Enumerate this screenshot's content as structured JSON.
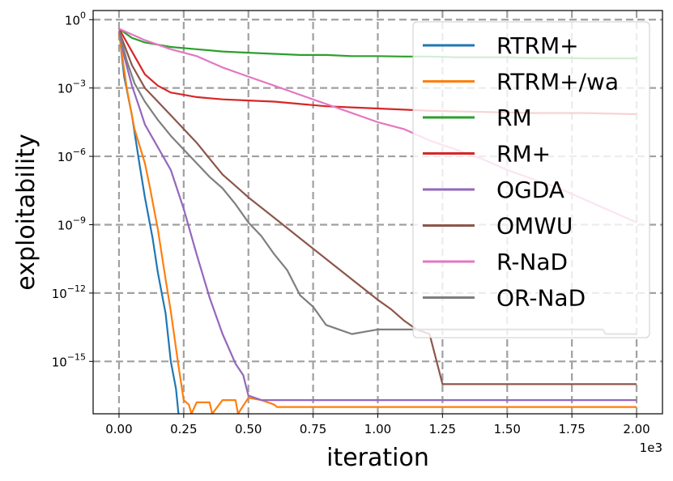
{
  "chart_data": {
    "type": "line",
    "title": "",
    "xlabel": "iteration",
    "ylabel": "exploitability",
    "x_offset_label": "1e3",
    "x_scale_factor": 1000,
    "xlim": [
      -0.1,
      2.1
    ],
    "ylim_log10": [
      -17.3,
      0.4
    ],
    "x_ticks": [
      0.0,
      0.25,
      0.5,
      0.75,
      1.0,
      1.25,
      1.5,
      1.75,
      2.0
    ],
    "x_tick_labels": [
      "0.00",
      "0.25",
      "0.50",
      "0.75",
      "1.00",
      "1.25",
      "1.50",
      "1.75",
      "2.00"
    ],
    "y_ticks_log10": [
      0,
      -3,
      -6,
      -9,
      -12,
      -15
    ],
    "y_tick_labels": [
      {
        "base": "10",
        "exp": "0"
      },
      {
        "base": "10",
        "exp": "−3"
      },
      {
        "base": "10",
        "exp": "−6"
      },
      {
        "base": "10",
        "exp": "−9"
      },
      {
        "base": "10",
        "exp": "−12"
      },
      {
        "base": "10",
        "exp": "−15"
      }
    ],
    "grid": true,
    "legend_position": "top-right",
    "series": [
      {
        "name": "RTRM+",
        "color": "#1f77b4",
        "x": [
          0,
          0.02,
          0.05,
          0.08,
          0.1,
          0.13,
          0.15,
          0.18,
          0.2,
          0.22,
          0.23
        ],
        "y_log10": [
          -0.5,
          -2.5,
          -4.2,
          -6.4,
          -7.8,
          -9.6,
          -11.1,
          -12.9,
          -15.0,
          -16.2,
          -17.3
        ]
      },
      {
        "name": "RTRM+/wa",
        "color": "#ff7f0e",
        "x": [
          0,
          0.03,
          0.06,
          0.1,
          0.12,
          0.15,
          0.18,
          0.2,
          0.23,
          0.25,
          0.27,
          0.28,
          0.3,
          0.35,
          0.36,
          0.4,
          0.45,
          0.46,
          0.5,
          0.55,
          0.6,
          0.61,
          2.0
        ],
        "y_log10": [
          -0.6,
          -3.0,
          -4.8,
          -6.3,
          -7.4,
          -9.2,
          -11.4,
          -12.8,
          -15.2,
          -16.7,
          -16.9,
          -17.3,
          -16.8,
          -16.8,
          -17.3,
          -16.7,
          -16.7,
          -17.3,
          -16.6,
          -16.7,
          -16.9,
          -17.0,
          -17.0
        ]
      },
      {
        "name": "RM",
        "color": "#2ca02c",
        "x": [
          0,
          0.05,
          0.1,
          0.15,
          0.2,
          0.3,
          0.4,
          0.5,
          0.6,
          0.7,
          0.8,
          0.9,
          1.0,
          1.1,
          1.2,
          1.3,
          1.4,
          1.5,
          1.6,
          1.7,
          1.8,
          1.9,
          2.0
        ],
        "y_log10": [
          -0.4,
          -0.8,
          -1.0,
          -1.1,
          -1.2,
          -1.3,
          -1.4,
          -1.45,
          -1.5,
          -1.55,
          -1.55,
          -1.6,
          -1.6,
          -1.62,
          -1.62,
          -1.65,
          -1.65,
          -1.65,
          -1.68,
          -1.68,
          -1.7,
          -1.7,
          -1.7
        ]
      },
      {
        "name": "RM+",
        "color": "#d62728",
        "x": [
          0,
          0.05,
          0.1,
          0.15,
          0.2,
          0.25,
          0.3,
          0.35,
          0.4,
          0.5,
          0.6,
          0.7,
          0.8,
          0.9,
          1.0,
          1.1,
          1.2,
          1.4,
          1.6,
          1.8,
          2.0
        ],
        "y_log10": [
          -0.4,
          -1.4,
          -2.4,
          -2.9,
          -3.2,
          -3.3,
          -3.4,
          -3.45,
          -3.5,
          -3.55,
          -3.6,
          -3.7,
          -3.8,
          -3.85,
          -3.9,
          -3.95,
          -4.0,
          -4.05,
          -4.1,
          -4.1,
          -4.15
        ]
      },
      {
        "name": "OGDA",
        "color": "#9467bd",
        "x": [
          0,
          0.02,
          0.05,
          0.08,
          0.1,
          0.15,
          0.2,
          0.25,
          0.3,
          0.35,
          0.4,
          0.45,
          0.48,
          0.5,
          0.55,
          2.0
        ],
        "y_log10": [
          -0.5,
          -1.6,
          -2.9,
          -3.9,
          -4.6,
          -5.6,
          -6.6,
          -8.3,
          -10.3,
          -12.2,
          -13.8,
          -15.1,
          -15.6,
          -16.5,
          -16.7,
          -16.7
        ]
      },
      {
        "name": "OMWU",
        "color": "#8c564b",
        "x": [
          0,
          0.05,
          0.1,
          0.15,
          0.2,
          0.25,
          0.3,
          0.35,
          0.4,
          0.45,
          0.5,
          0.6,
          0.7,
          0.8,
          0.9,
          1.0,
          1.05,
          1.1,
          1.15,
          1.2,
          1.25,
          1.3,
          2.0
        ],
        "y_log10": [
          -0.5,
          -2.0,
          -3.0,
          -3.6,
          -4.2,
          -4.8,
          -5.4,
          -6.1,
          -6.8,
          -7.3,
          -7.8,
          -8.7,
          -9.6,
          -10.5,
          -11.4,
          -12.3,
          -12.7,
          -13.2,
          -13.6,
          -13.8,
          -16.0,
          -16.0,
          -16.0
        ]
      },
      {
        "name": "R-NaD",
        "color": "#e377c2",
        "x": [
          0,
          0.1,
          0.2,
          0.3,
          0.4,
          0.5,
          0.6,
          0.7,
          0.8,
          0.9,
          1.0,
          1.1,
          1.2,
          1.3,
          1.4,
          1.5,
          1.6,
          1.7,
          1.8,
          1.9,
          2.0
        ],
        "y_log10": [
          -0.4,
          -0.9,
          -1.3,
          -1.6,
          -2.1,
          -2.5,
          -2.9,
          -3.3,
          -3.7,
          -4.1,
          -4.5,
          -4.8,
          -5.3,
          -5.7,
          -6.1,
          -6.6,
          -7.0,
          -7.4,
          -7.9,
          -8.4,
          -8.9
        ]
      },
      {
        "name": "OR-NaD",
        "color": "#7f7f7f",
        "x": [
          0,
          0.03,
          0.06,
          0.1,
          0.15,
          0.2,
          0.25,
          0.3,
          0.35,
          0.4,
          0.45,
          0.5,
          0.55,
          0.6,
          0.65,
          0.7,
          0.75,
          0.8,
          0.85,
          0.9,
          0.95,
          1.0,
          1.5,
          1.87,
          1.88,
          2.0
        ],
        "y_log10": [
          -0.5,
          -1.8,
          -2.8,
          -3.6,
          -4.4,
          -5.1,
          -5.7,
          -6.3,
          -6.9,
          -7.4,
          -8.1,
          -8.9,
          -9.5,
          -10.3,
          -11.0,
          -12.1,
          -12.6,
          -13.4,
          -13.6,
          -13.8,
          -13.7,
          -13.6,
          -13.6,
          -13.6,
          -13.8,
          -13.8
        ]
      }
    ]
  }
}
